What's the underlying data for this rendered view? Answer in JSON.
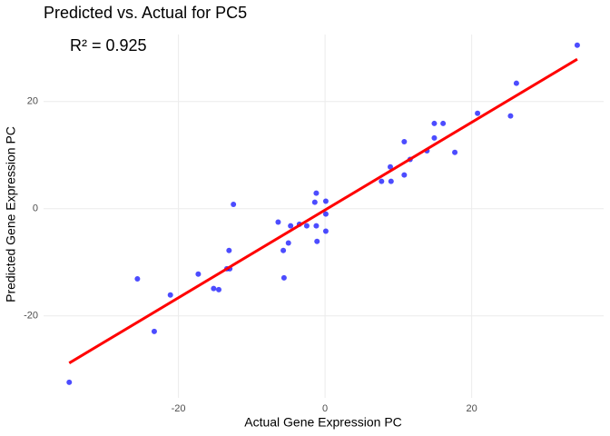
{
  "chart_data": {
    "type": "scatter",
    "title": "Predicted vs. Actual for PC5",
    "annotation": "R² = 0.925",
    "x_label": "Actual Gene Expression PC",
    "y_label": "Predicted Gene Expression PC",
    "xlim": [
      -38.4,
      38.0
    ],
    "ylim": [
      -35.3,
      32.5
    ],
    "xticks": [
      -20,
      0,
      20
    ],
    "yticks": [
      -20,
      0,
      20
    ],
    "grid": true,
    "series": [
      {
        "color": "#0000ff",
        "x": [
          -34.9,
          -25.6,
          -23.3,
          -21.1,
          -17.3,
          -15.2,
          -14.5,
          -13.4,
          -13.0,
          -13.1,
          -12.5,
          -6.4,
          -5.7,
          -5.6,
          -5.0,
          -4.7,
          -3.5,
          -2.5,
          -1.4,
          -1.2,
          -1.2,
          -1.1,
          0.1,
          0.1,
          0.1,
          7.7,
          8.9,
          9.0,
          10.8,
          10.8,
          11.6,
          13.9,
          14.9,
          14.9,
          16.1,
          17.7,
          20.8,
          25.3,
          26.1,
          34.4
        ],
        "values": [
          -32.4,
          -13.1,
          -22.9,
          -16.1,
          -12.2,
          -14.9,
          -15.1,
          -11.2,
          -11.2,
          -7.8,
          0.8,
          -2.5,
          -7.8,
          -12.9,
          -6.4,
          -3.2,
          -2.9,
          -3.2,
          1.2,
          2.9,
          -3.2,
          -6.1,
          -1.0,
          1.4,
          -4.2,
          5.1,
          7.8,
          5.1,
          6.3,
          12.5,
          9.2,
          10.8,
          13.2,
          15.9,
          15.9,
          10.5,
          17.8,
          17.3,
          23.4,
          30.5
        ]
      }
    ],
    "fit": {
      "color": "#ff0000",
      "x": [
        -34.9,
        34.4
      ],
      "values": [
        -28.8,
        27.9
      ]
    }
  }
}
